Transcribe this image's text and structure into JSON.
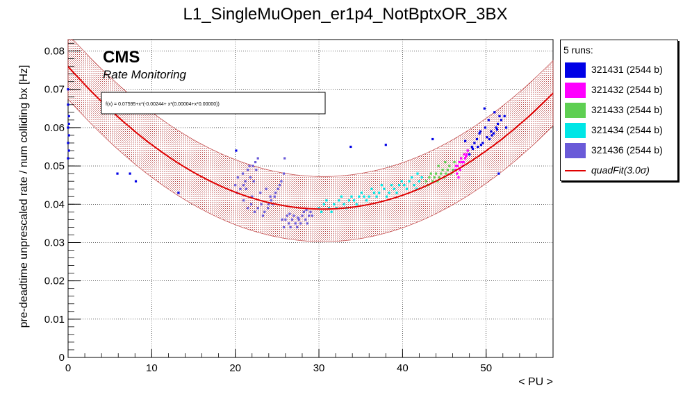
{
  "chart_data": {
    "type": "scatter",
    "title": "L1_SingleMuOpen_er1p4_NotBptxOR_3BX",
    "xlabel": "< PU >",
    "ylabel": "pre-deadtime unprescaled rate / num colliding bx [Hz]",
    "xlim": [
      0,
      58
    ],
    "ylim": [
      0,
      0.083
    ],
    "xticks": [
      "0",
      "10",
      "20",
      "30",
      "40",
      "50"
    ],
    "yticks": [
      "0",
      "0.01",
      "0.02",
      "0.03",
      "0.04",
      "0.05",
      "0.06",
      "0.07",
      "0.08"
    ],
    "grid": true,
    "cms_label": "CMS",
    "cms_sublabel": "Rate Monitoring",
    "fit_formula": "f(x) = 0.07595+x*(-0.00244+ x*(0.00004+x*0.00000))",
    "fit": {
      "coefficients": [
        0.07595,
        -0.00244,
        4e-05
      ],
      "band": 0.0085,
      "color": "#e00000",
      "band_color": "#c06060"
    },
    "legend": {
      "header": "5 runs:",
      "placement": "right",
      "entries": [
        {
          "label": "321431 (2544 b)",
          "color": "#0000e6"
        },
        {
          "label": "321432 (2544 b)",
          "color": "#ff00ff"
        },
        {
          "label": "321433 (2544 b)",
          "color": "#5ecf52"
        },
        {
          "label": "321434 (2544 b)",
          "color": "#00e6e6"
        },
        {
          "label": "321436 (2544 b)",
          "color": "#6a5ad8"
        },
        {
          "label": "quadFit(3.0σ)",
          "color": "#e00000",
          "type": "line"
        }
      ]
    },
    "series": [
      {
        "name": "321431 (2544 b)",
        "color": "#0000e6",
        "points": [
          [
            0.0,
            0.07
          ],
          [
            0.0,
            0.066
          ],
          [
            0.1,
            0.063
          ],
          [
            0.1,
            0.061
          ],
          [
            0.0,
            0.06
          ],
          [
            0.1,
            0.058
          ],
          [
            0.0,
            0.056
          ],
          [
            0.1,
            0.054
          ],
          [
            0.0,
            0.052
          ],
          [
            5.9,
            0.048
          ],
          [
            7.4,
            0.048
          ],
          [
            8.1,
            0.046
          ],
          [
            13.2,
            0.043
          ],
          [
            20.1,
            0.054
          ],
          [
            33.8,
            0.055
          ],
          [
            38.0,
            0.0555
          ],
          [
            43.6,
            0.057
          ],
          [
            47.5,
            0.0565
          ],
          [
            48.3,
            0.055
          ],
          [
            48.9,
            0.057
          ],
          [
            49.3,
            0.059
          ],
          [
            49.9,
            0.06
          ],
          [
            50.3,
            0.062
          ],
          [
            50.7,
            0.058
          ],
          [
            51.0,
            0.064
          ],
          [
            51.4,
            0.061
          ],
          [
            51.8,
            0.062
          ],
          [
            52.2,
            0.063
          ],
          [
            49.2,
            0.0585
          ],
          [
            49.6,
            0.056
          ],
          [
            50.1,
            0.0575
          ],
          [
            50.6,
            0.059
          ],
          [
            51.2,
            0.06
          ],
          [
            51.6,
            0.063
          ],
          [
            52.4,
            0.06
          ],
          [
            48.0,
            0.053
          ],
          [
            47.8,
            0.054
          ],
          [
            48.6,
            0.056
          ],
          [
            49.0,
            0.055
          ],
          [
            50.4,
            0.057
          ],
          [
            51.3,
            0.0595
          ],
          [
            50.9,
            0.0585
          ],
          [
            49.4,
            0.0555
          ],
          [
            48.4,
            0.0545
          ],
          [
            51.5,
            0.048
          ],
          [
            49.8,
            0.065
          ]
        ]
      },
      {
        "name": "321432 (2544 b)",
        "color": "#ff00ff",
        "points": [
          [
            46.3,
            0.049
          ],
          [
            46.6,
            0.05
          ],
          [
            46.8,
            0.051
          ],
          [
            47.0,
            0.052
          ],
          [
            47.2,
            0.05
          ],
          [
            47.4,
            0.053
          ],
          [
            46.5,
            0.048
          ],
          [
            46.9,
            0.049
          ],
          [
            47.1,
            0.051
          ],
          [
            47.5,
            0.052
          ],
          [
            47.7,
            0.053
          ],
          [
            46.7,
            0.047
          ],
          [
            47.3,
            0.051
          ],
          [
            47.6,
            0.0525
          ],
          [
            46.4,
            0.05
          ],
          [
            47.8,
            0.054
          ]
        ]
      },
      {
        "name": "321433 (2544 b)",
        "color": "#5ecf52",
        "points": [
          [
            42.8,
            0.046
          ],
          [
            43.2,
            0.047
          ],
          [
            43.6,
            0.046
          ],
          [
            44.0,
            0.048
          ],
          [
            44.4,
            0.047
          ],
          [
            44.8,
            0.049
          ],
          [
            45.2,
            0.048
          ],
          [
            45.6,
            0.05
          ],
          [
            46.0,
            0.049
          ],
          [
            43.0,
            0.045
          ],
          [
            43.4,
            0.048
          ],
          [
            43.8,
            0.047
          ],
          [
            44.2,
            0.046
          ],
          [
            44.6,
            0.048
          ],
          [
            45.0,
            0.047
          ],
          [
            45.4,
            0.049
          ],
          [
            45.8,
            0.048
          ],
          [
            46.2,
            0.051
          ],
          [
            44.3,
            0.05
          ],
          [
            45.1,
            0.051
          ]
        ]
      },
      {
        "name": "321434 (2544 b)",
        "color": "#00e6e6",
        "points": [
          [
            30.0,
            0.039
          ],
          [
            30.6,
            0.04
          ],
          [
            31.2,
            0.039
          ],
          [
            31.8,
            0.04
          ],
          [
            32.4,
            0.041
          ],
          [
            33.0,
            0.04
          ],
          [
            33.6,
            0.041
          ],
          [
            34.2,
            0.041
          ],
          [
            34.8,
            0.042
          ],
          [
            35.4,
            0.042
          ],
          [
            36.0,
            0.042
          ],
          [
            36.6,
            0.043
          ],
          [
            37.2,
            0.043
          ],
          [
            37.8,
            0.044
          ],
          [
            38.4,
            0.043
          ],
          [
            39.0,
            0.044
          ],
          [
            39.6,
            0.045
          ],
          [
            40.2,
            0.045
          ],
          [
            40.8,
            0.046
          ],
          [
            41.4,
            0.045
          ],
          [
            42.0,
            0.046
          ],
          [
            30.3,
            0.038
          ],
          [
            30.9,
            0.041
          ],
          [
            31.5,
            0.038
          ],
          [
            32.1,
            0.039
          ],
          [
            32.7,
            0.042
          ],
          [
            33.3,
            0.039
          ],
          [
            33.9,
            0.042
          ],
          [
            34.5,
            0.04
          ],
          [
            35.1,
            0.043
          ],
          [
            35.7,
            0.041
          ],
          [
            36.3,
            0.044
          ],
          [
            36.9,
            0.042
          ],
          [
            37.5,
            0.045
          ],
          [
            38.1,
            0.042
          ],
          [
            38.7,
            0.045
          ],
          [
            39.3,
            0.043
          ],
          [
            39.9,
            0.046
          ],
          [
            40.5,
            0.044
          ],
          [
            41.1,
            0.047
          ],
          [
            41.7,
            0.044
          ],
          [
            42.3,
            0.047
          ],
          [
            41.8,
            0.048
          ]
        ]
      },
      {
        "name": "321436 (2544 b)",
        "color": "#6a5ad8",
        "points": [
          [
            20.0,
            0.045
          ],
          [
            20.3,
            0.047
          ],
          [
            20.6,
            0.044
          ],
          [
            20.9,
            0.048
          ],
          [
            21.2,
            0.046
          ],
          [
            21.5,
            0.049
          ],
          [
            21.8,
            0.047
          ],
          [
            22.1,
            0.05
          ],
          [
            22.4,
            0.051
          ],
          [
            22.7,
            0.052
          ],
          [
            20.2,
            0.043
          ],
          [
            21.0,
            0.045
          ],
          [
            21.7,
            0.05
          ],
          [
            22.5,
            0.049
          ],
          [
            21.5,
            0.039
          ],
          [
            21.9,
            0.04
          ],
          [
            22.3,
            0.038
          ],
          [
            22.7,
            0.039
          ],
          [
            23.1,
            0.04
          ],
          [
            23.5,
            0.038
          ],
          [
            23.9,
            0.039
          ],
          [
            24.3,
            0.041
          ],
          [
            24.7,
            0.042
          ],
          [
            25.1,
            0.044
          ],
          [
            25.5,
            0.046
          ],
          [
            25.8,
            0.048
          ],
          [
            24.0,
            0.04
          ],
          [
            24.8,
            0.043
          ],
          [
            25.3,
            0.045
          ],
          [
            23.3,
            0.037
          ],
          [
            24.5,
            0.04
          ],
          [
            25.6,
            0.036
          ],
          [
            26.0,
            0.036
          ],
          [
            26.4,
            0.035
          ],
          [
            26.8,
            0.036
          ],
          [
            27.2,
            0.035
          ],
          [
            27.6,
            0.036
          ],
          [
            28.0,
            0.037
          ],
          [
            28.4,
            0.036
          ],
          [
            28.8,
            0.037
          ],
          [
            29.2,
            0.037
          ],
          [
            26.2,
            0.037
          ],
          [
            26.6,
            0.034
          ],
          [
            27.0,
            0.037
          ],
          [
            27.4,
            0.034
          ],
          [
            27.8,
            0.035
          ],
          [
            28.2,
            0.038
          ],
          [
            28.6,
            0.035
          ],
          [
            29.0,
            0.038
          ],
          [
            25.8,
            0.034
          ],
          [
            26.5,
            0.0375
          ],
          [
            27.5,
            0.0365
          ],
          [
            28.5,
            0.0385
          ],
          [
            21.0,
            0.041
          ],
          [
            22.0,
            0.042
          ],
          [
            23.0,
            0.043
          ],
          [
            21.3,
            0.044
          ],
          [
            22.2,
            0.046
          ],
          [
            23.7,
            0.044
          ],
          [
            24.2,
            0.042
          ],
          [
            25.9,
            0.052
          ]
        ]
      }
    ]
  }
}
